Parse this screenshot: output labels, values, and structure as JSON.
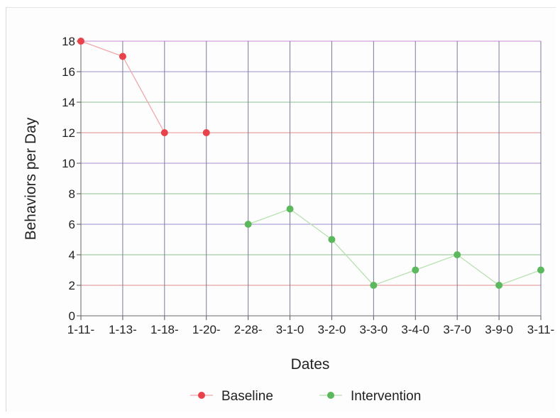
{
  "chart_data": {
    "type": "line",
    "title": "",
    "xlabel": "Dates",
    "ylabel": "Behaviors per Day",
    "categories": [
      "1-11-",
      "1-13-",
      "1-18-",
      "1-20-",
      "2-28-",
      "3-1-0",
      "3-2-0",
      "3-3-0",
      "3-4-0",
      "3-7-0",
      "3-9-0",
      "3-11-"
    ],
    "ylim": [
      0,
      18
    ],
    "yticks": [
      0,
      2,
      4,
      6,
      8,
      10,
      12,
      14,
      16,
      18
    ],
    "grid": true,
    "legend_position": "bottom",
    "series": [
      {
        "name": "Baseline",
        "color": "#e8434b",
        "line_color": "#f2a6a8",
        "values": [
          18,
          17,
          12,
          12,
          null,
          null,
          null,
          null,
          null,
          null,
          null,
          null
        ]
      },
      {
        "name": "Intervention",
        "color": "#5cb85c",
        "line_color": "#b7e2b0",
        "values": [
          null,
          null,
          null,
          null,
          6,
          7,
          5,
          2,
          3,
          4,
          2,
          3
        ]
      }
    ]
  }
}
